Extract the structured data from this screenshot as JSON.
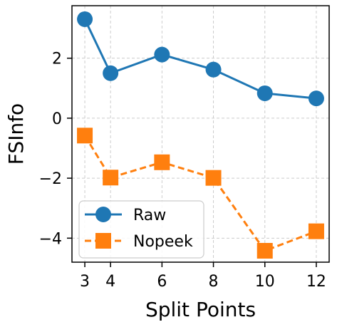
{
  "chart_data": {
    "type": "line",
    "xlabel": "Split Points",
    "ylabel": "FSInfo",
    "x": [
      3,
      4,
      6,
      8,
      10,
      12
    ],
    "xticks": [
      3,
      4,
      6,
      8,
      10,
      12
    ],
    "yticks": [
      -4,
      -2,
      0,
      2
    ],
    "ytick_labels": [
      "−4",
      "−2",
      "0",
      "2"
    ],
    "xlim": [
      2.5,
      12.5
    ],
    "ylim": [
      -4.8,
      3.75
    ],
    "grid": true,
    "legend_position": "lower-left",
    "series": [
      {
        "name": "Raw",
        "values": [
          3.3,
          1.5,
          2.12,
          1.62,
          0.83,
          0.66
        ],
        "color": "#1f77b4",
        "line_style": "solid",
        "marker": "circle"
      },
      {
        "name": "Nopeek",
        "values": [
          -0.58,
          -1.98,
          -1.47,
          -1.99,
          -4.42,
          -3.77
        ],
        "color": "#ff7f0e",
        "line_style": "dashed",
        "marker": "square"
      }
    ]
  }
}
